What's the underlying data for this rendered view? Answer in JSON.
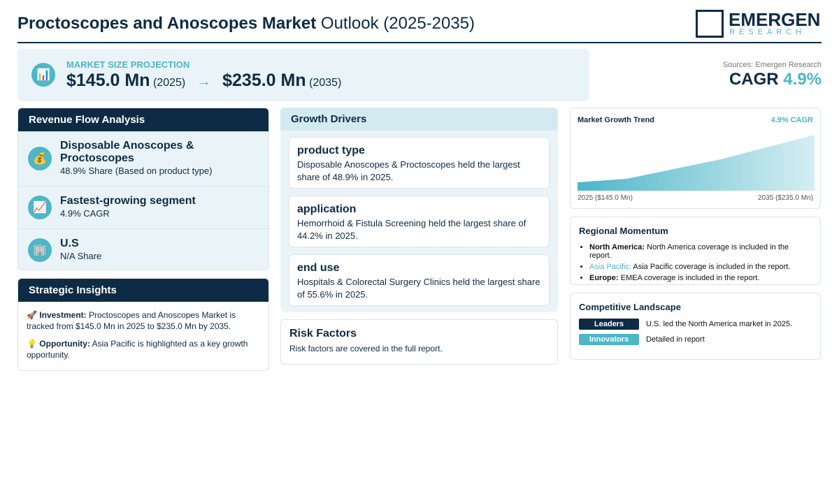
{
  "header": {
    "title_bold": "Proctoscopes and Anoscopes Market",
    "title_rest": "Outlook (2025-2035)",
    "logo_main": "EMERGEN",
    "logo_sub": "RESEARCH"
  },
  "projection": {
    "icon": "📊",
    "label": "MARKET SIZE PROJECTION",
    "start_value": "$145.0 Mn",
    "start_year": "(2025)",
    "arrow": "→",
    "end_value": "$235.0 Mn",
    "end_year": "(2035)"
  },
  "cagr": {
    "source": "Sources: Emergen Research",
    "label": "CAGR",
    "value": "4.9%"
  },
  "revenue_flow": {
    "title": "Revenue Flow Analysis",
    "items": [
      {
        "icon": "💰",
        "title": "Disposable Anoscopes & Proctoscopes",
        "detail": "48.9% Share (Based on product type)"
      },
      {
        "icon": "📈",
        "title": "Fastest-growing segment",
        "detail": "4.9% CAGR"
      },
      {
        "icon": "🏢",
        "title": "U.S",
        "detail": "N/A Share"
      }
    ]
  },
  "strategic_insights": {
    "title": "Strategic Insights",
    "items": [
      {
        "icon": "🚀",
        "label": "Investment:",
        "text": "Proctoscopes and Anoscopes Market is tracked from $145.0 Mn in 2025 to $235.0 Mn by 2035."
      },
      {
        "icon": "💡",
        "label": "Opportunity:",
        "text": "Asia Pacific is highlighted as a key growth opportunity."
      }
    ]
  },
  "growth_drivers": {
    "title": "Growth Drivers",
    "items": [
      {
        "title": "product type",
        "text": "Disposable Anoscopes & Proctoscopes held the largest share of 48.9% in 2025."
      },
      {
        "title": "application",
        "text": "Hemorrhoid & Fistula Screening held the largest share of 44.2% in 2025."
      },
      {
        "title": "end use",
        "text": "Hospitals & Colorectal Surgery Clinics held the largest share of 55.6% in 2025."
      }
    ]
  },
  "risk_factors": {
    "title": "Risk Factors",
    "text": "Risk factors are covered in the full report."
  },
  "growth_trend": {
    "title": "Market Growth Trend",
    "badge": "4.9% CAGR",
    "start_label": "2025 ($145.0 Mn)",
    "end_label": "2035 ($235.0 Mn)"
  },
  "regional": {
    "title": "Regional Momentum",
    "items": [
      {
        "region": "North America:",
        "text": "North America coverage is included in the report."
      },
      {
        "region": "Asia Pacific:",
        "text": "Asia Pacific coverage is included in the report."
      },
      {
        "region": "Europe:",
        "text": "EMEA coverage is included in the report."
      }
    ]
  },
  "competitive": {
    "title": "Competitive Landscape",
    "items": [
      {
        "badge": "Leaders",
        "text": "U.S. led the North America market in 2025."
      },
      {
        "badge": "Innovators",
        "text": "Detailed in report"
      }
    ]
  }
}
